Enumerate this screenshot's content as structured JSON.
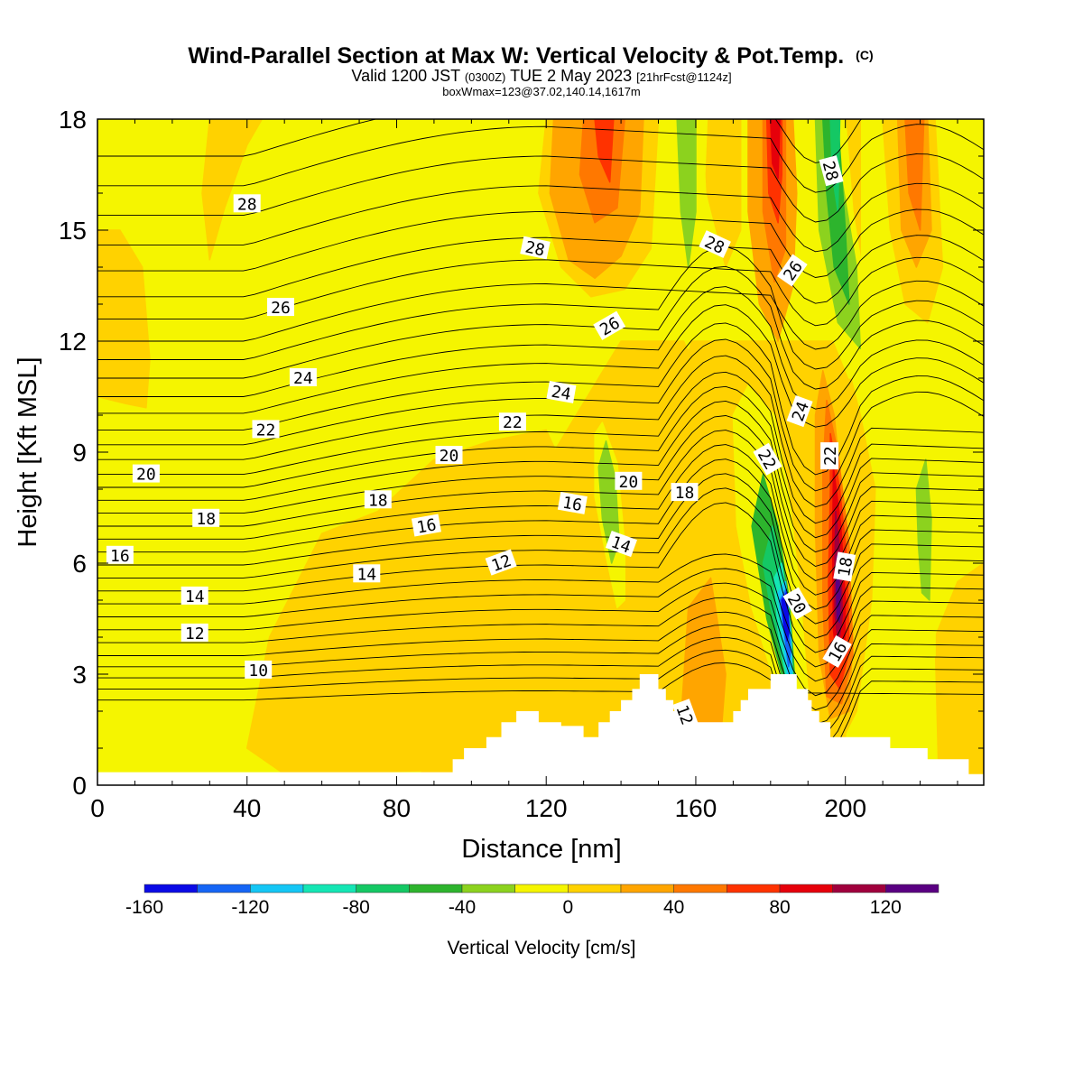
{
  "title": {
    "main": "Wind-Parallel Section at Max W: Vertical Velocity & Pot.Temp.",
    "copyright": "(C)",
    "valid_prefix": "Valid 1200 JST",
    "valid_utc": "(0300Z)",
    "valid_date": "TUE 2 May 2023",
    "forecast": "[21hrFcst@1124z]",
    "box": "boxWmax=123@37.02,140.14,1617m"
  },
  "chart_data": {
    "type": "heatmap",
    "xlabel": "Distance [nm]",
    "ylabel": "Height [Kft MSL]",
    "xlim": [
      0,
      237
    ],
    "ylim": [
      0,
      18
    ],
    "x_ticks": [
      "0",
      "40",
      "80",
      "120",
      "160",
      "200"
    ],
    "y_ticks": [
      "0",
      "3",
      "6",
      "9",
      "12",
      "15",
      "18"
    ],
    "colorbar": {
      "label": "Vertical Velocity [cm/s]",
      "ticks": [
        "-160",
        "-120",
        "-80",
        "-40",
        "0",
        "40",
        "80",
        "120"
      ],
      "bins": [
        -160,
        -140,
        -120,
        -100,
        -80,
        -60,
        -40,
        -20,
        0,
        20,
        40,
        60,
        80,
        100,
        120,
        140
      ],
      "colors": [
        "#0a0ae6",
        "#1565f5",
        "#14c6f5",
        "#14e6b4",
        "#14c864",
        "#2db42d",
        "#8cd21e",
        "#f5f500",
        "#ffd200",
        "#ffa500",
        "#ff7800",
        "#ff3200",
        "#e6000a",
        "#a0003c",
        "#5a0082"
      ]
    },
    "theta_labels": [
      {
        "value": "28",
        "x": 40,
        "y": 15.7,
        "rot": 0
      },
      {
        "value": "28",
        "x": 117,
        "y": 14.5,
        "rot": 12
      },
      {
        "value": "28",
        "x": 165,
        "y": 14.6,
        "rot": 25
      },
      {
        "value": "28",
        "x": 196,
        "y": 16.6,
        "rot": 75
      },
      {
        "value": "26",
        "x": 49,
        "y": 12.9,
        "rot": 0
      },
      {
        "value": "26",
        "x": 137,
        "y": 12.4,
        "rot": -30
      },
      {
        "value": "26",
        "x": 186,
        "y": 13.9,
        "rot": -55
      },
      {
        "value": "24",
        "x": 55,
        "y": 11.0,
        "rot": 0
      },
      {
        "value": "24",
        "x": 124,
        "y": 10.6,
        "rot": 10
      },
      {
        "value": "24",
        "x": 188,
        "y": 10.1,
        "rot": -70
      },
      {
        "value": "22",
        "x": 45,
        "y": 9.6,
        "rot": 0
      },
      {
        "value": "22",
        "x": 111,
        "y": 9.8,
        "rot": 0
      },
      {
        "value": "22",
        "x": 179,
        "y": 8.8,
        "rot": 60
      },
      {
        "value": "22",
        "x": 196,
        "y": 8.9,
        "rot": -90
      },
      {
        "value": "20",
        "x": 13,
        "y": 8.4,
        "rot": 0
      },
      {
        "value": "20",
        "x": 94,
        "y": 8.9,
        "rot": 0
      },
      {
        "value": "20",
        "x": 142,
        "y": 8.2,
        "rot": 0
      },
      {
        "value": "20",
        "x": 187,
        "y": 4.9,
        "rot": 60
      },
      {
        "value": "18",
        "x": 29,
        "y": 7.2,
        "rot": 0
      },
      {
        "value": "18",
        "x": 75,
        "y": 7.7,
        "rot": 0
      },
      {
        "value": "18",
        "x": 157,
        "y": 7.9,
        "rot": 0
      },
      {
        "value": "18",
        "x": 200,
        "y": 5.9,
        "rot": -80
      },
      {
        "value": "16",
        "x": 6,
        "y": 6.2,
        "rot": 0
      },
      {
        "value": "16",
        "x": 88,
        "y": 7.0,
        "rot": -10
      },
      {
        "value": "16",
        "x": 127,
        "y": 7.6,
        "rot": 10
      },
      {
        "value": "16",
        "x": 198,
        "y": 3.6,
        "rot": -60
      },
      {
        "value": "14",
        "x": 26,
        "y": 5.1,
        "rot": 0
      },
      {
        "value": "14",
        "x": 72,
        "y": 5.7,
        "rot": 0
      },
      {
        "value": "14",
        "x": 140,
        "y": 6.5,
        "rot": 20
      },
      {
        "value": "12",
        "x": 26,
        "y": 4.1,
        "rot": 0
      },
      {
        "value": "12",
        "x": 108,
        "y": 6.0,
        "rot": -20
      },
      {
        "value": "12",
        "x": 157,
        "y": 1.9,
        "rot": 70
      },
      {
        "value": "10",
        "x": 43,
        "y": 3.1,
        "rot": 0
      }
    ]
  }
}
